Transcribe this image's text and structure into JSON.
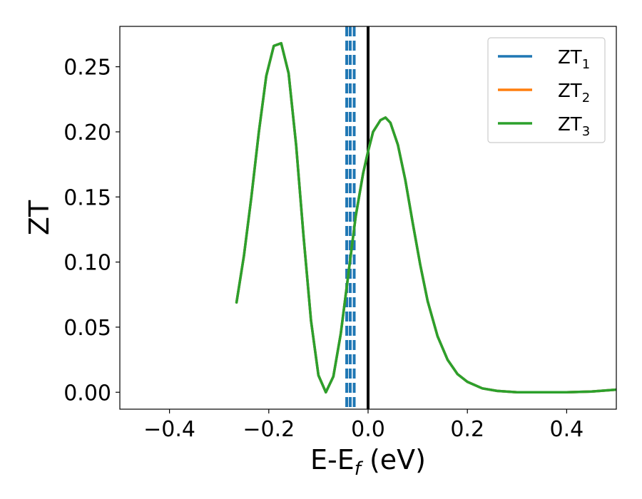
{
  "chart_data": {
    "type": "line",
    "xlabel": "E-E",
    "xlabel_sub": "f",
    "xlabel_unit": " (eV)",
    "ylabel": "ZT",
    "xlim": [
      -0.5,
      0.5
    ],
    "ylim": [
      -0.013,
      0.281
    ],
    "xticks": [
      -0.4,
      -0.2,
      0.0,
      0.2,
      0.4
    ],
    "xtick_labels": [
      "−0.4",
      "−0.2",
      "0.0",
      "0.2",
      "0.4"
    ],
    "yticks": [
      0.0,
      0.05,
      0.1,
      0.15,
      0.2,
      0.25
    ],
    "ytick_labels": [
      "0.00",
      "0.05",
      "0.10",
      "0.15",
      "0.20",
      "0.25"
    ],
    "legend_position": "top-right",
    "series": [
      {
        "name": "ZT",
        "name_sub": "1",
        "color": "#1f77b4",
        "x": [
          -0.265,
          -0.25,
          -0.235,
          -0.22,
          -0.205,
          -0.19,
          -0.175,
          -0.16,
          -0.145,
          -0.13,
          -0.115,
          -0.1,
          -0.085,
          -0.07,
          -0.055,
          -0.04,
          -0.025,
          -0.01,
          0.0,
          0.01,
          0.025,
          0.035,
          0.045,
          0.06,
          0.075,
          0.09,
          0.105,
          0.12,
          0.14,
          0.16,
          0.18,
          0.2,
          0.23,
          0.26,
          0.3,
          0.35,
          0.4,
          0.45,
          0.5
        ],
        "y": [
          0.069,
          0.105,
          0.15,
          0.2,
          0.243,
          0.266,
          0.268,
          0.245,
          0.19,
          0.12,
          0.055,
          0.013,
          0.0,
          0.012,
          0.045,
          0.09,
          0.135,
          0.168,
          0.185,
          0.2,
          0.209,
          0.211,
          0.207,
          0.19,
          0.163,
          0.13,
          0.098,
          0.07,
          0.043,
          0.025,
          0.014,
          0.008,
          0.003,
          0.001,
          0.0,
          0.0,
          0.0,
          0.0005,
          0.002
        ]
      },
      {
        "name": "ZT",
        "name_sub": "2",
        "color": "#ff7f0e",
        "x": [
          -0.265,
          -0.25,
          -0.235,
          -0.22,
          -0.205,
          -0.19,
          -0.175,
          -0.16,
          -0.145,
          -0.13,
          -0.115,
          -0.1,
          -0.085,
          -0.07,
          -0.055,
          -0.04,
          -0.025,
          -0.01,
          0.0,
          0.01,
          0.025,
          0.035,
          0.045,
          0.06,
          0.075,
          0.09,
          0.105,
          0.12,
          0.14,
          0.16,
          0.18,
          0.2,
          0.23,
          0.26,
          0.3,
          0.35,
          0.4,
          0.45,
          0.5
        ],
        "y": [
          0.069,
          0.105,
          0.15,
          0.2,
          0.243,
          0.266,
          0.268,
          0.245,
          0.19,
          0.12,
          0.055,
          0.013,
          0.0,
          0.012,
          0.045,
          0.09,
          0.135,
          0.168,
          0.185,
          0.2,
          0.209,
          0.211,
          0.207,
          0.19,
          0.163,
          0.13,
          0.098,
          0.07,
          0.043,
          0.025,
          0.014,
          0.008,
          0.003,
          0.001,
          0.0,
          0.0,
          0.0,
          0.0005,
          0.002
        ]
      },
      {
        "name": "ZT",
        "name_sub": "3",
        "color": "#2ca02c",
        "x": [
          -0.265,
          -0.25,
          -0.235,
          -0.22,
          -0.205,
          -0.19,
          -0.175,
          -0.16,
          -0.145,
          -0.13,
          -0.115,
          -0.1,
          -0.085,
          -0.07,
          -0.055,
          -0.04,
          -0.025,
          -0.01,
          0.0,
          0.01,
          0.025,
          0.035,
          0.045,
          0.06,
          0.075,
          0.09,
          0.105,
          0.12,
          0.14,
          0.16,
          0.18,
          0.2,
          0.23,
          0.26,
          0.3,
          0.35,
          0.4,
          0.45,
          0.5
        ],
        "y": [
          0.069,
          0.105,
          0.15,
          0.2,
          0.243,
          0.266,
          0.268,
          0.245,
          0.19,
          0.12,
          0.055,
          0.013,
          0.0,
          0.012,
          0.045,
          0.09,
          0.135,
          0.168,
          0.185,
          0.2,
          0.209,
          0.211,
          0.207,
          0.19,
          0.163,
          0.13,
          0.098,
          0.07,
          0.043,
          0.025,
          0.014,
          0.008,
          0.003,
          0.001,
          0.0,
          0.0,
          0.0,
          0.0005,
          0.002
        ]
      }
    ],
    "vertical_lines": [
      {
        "x": -0.043,
        "color": "#1f77b4",
        "style": "dashed"
      },
      {
        "x": -0.036,
        "color": "#1f77b4",
        "style": "dashed"
      },
      {
        "x": -0.028,
        "color": "#1f77b4",
        "style": "dashed"
      },
      {
        "x": 0.0,
        "color": "#000000",
        "style": "solid"
      }
    ]
  }
}
